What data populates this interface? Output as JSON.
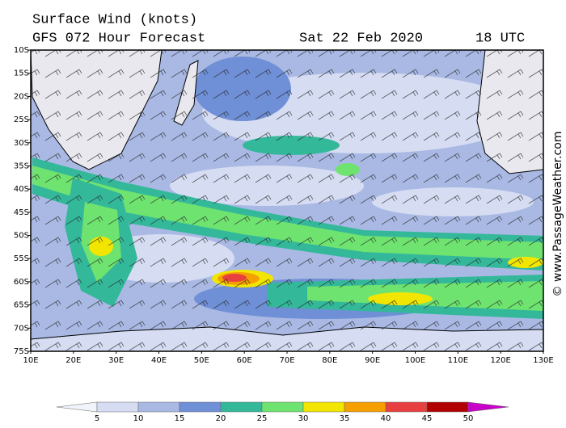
{
  "header": {
    "title": "Surface Wind (knots)",
    "model": "GFS 072 Hour Forecast",
    "date": "Sat 22 Feb 2020",
    "time": "18 UTC"
  },
  "map": {
    "lat_labels": [
      "10S",
      "15S",
      "20S",
      "25S",
      "30S",
      "35S",
      "40S",
      "45S",
      "50S",
      "55S",
      "60S",
      "65S",
      "70S",
      "75S"
    ],
    "lon_labels": [
      "10E",
      "20E",
      "30E",
      "40E",
      "50E",
      "60E",
      "70E",
      "80E",
      "90E",
      "100E",
      "110E",
      "120E",
      "130E"
    ]
  },
  "legend": {
    "ticks": [
      5,
      10,
      15,
      20,
      25,
      30,
      35,
      40,
      45,
      50
    ],
    "colors": [
      "#f2f4fc",
      "#d6dcf2",
      "#a9b9e4",
      "#6f8fd6",
      "#34b89a",
      "#6fe36f",
      "#f2e600",
      "#f5a000",
      "#e84040",
      "#b00000",
      "#c800c8"
    ]
  },
  "watermark": "© www.PassageWeather.com"
}
